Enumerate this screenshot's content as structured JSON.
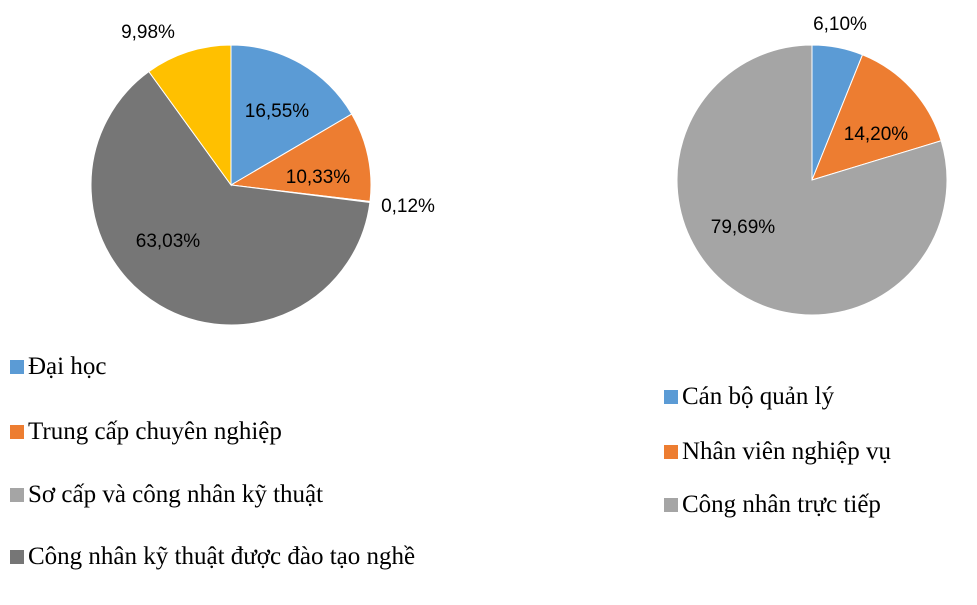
{
  "chart_data": [
    {
      "type": "pie",
      "categories": [
        "Đại học",
        "Trung cấp chuyên nghiệp",
        "Sơ cấp và công nhân kỹ thuật",
        "Công nhân kỹ thuật được đào tạo nghề",
        null
      ],
      "values": [
        16.55,
        10.33,
        0.12,
        63.03,
        9.98
      ],
      "value_labels": [
        "16,55%",
        "10,33%",
        "0,12%",
        "63,03%",
        "9,98%"
      ],
      "colors": [
        "#5b9bd5",
        "#ed7d31",
        "#a5a5a5",
        "#767676",
        "#ffc000"
      ]
    },
    {
      "type": "pie",
      "categories": [
        "Cán bộ quản lý",
        "Nhân viên nghiệp vụ",
        "Công nhân trực tiếp"
      ],
      "values": [
        6.1,
        14.2,
        79.69
      ],
      "value_labels": [
        "6,10%",
        "14,20%",
        "79,69%"
      ],
      "colors": [
        "#5b9bd5",
        "#ed7d31",
        "#a5a5a5"
      ]
    }
  ]
}
